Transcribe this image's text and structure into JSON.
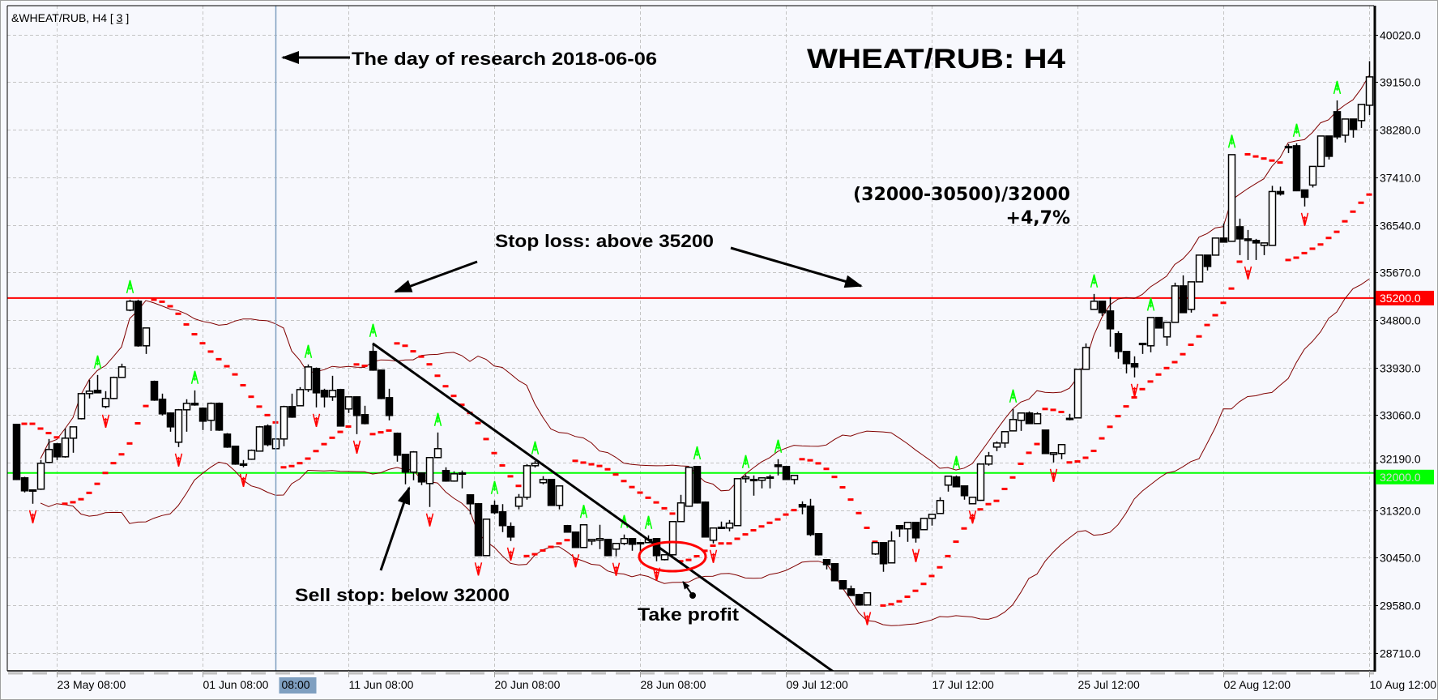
{
  "window": {
    "symbol_label": "&WHEAT/RUB, H4 [",
    "symbol_index": "3",
    "symbol_close": "]"
  },
  "chart_data": {
    "type": "candlestick",
    "title": "WHEAT/RUB: H4",
    "ylim": [
      28380,
      40550
    ],
    "grid": true,
    "y_ticks": [
      40020,
      39150,
      38280,
      37410,
      36540,
      35670,
      34800,
      33930,
      33060,
      32190,
      31320,
      30450,
      29580,
      28710
    ],
    "y_tick_labels": [
      "40020.0",
      "39150.0",
      "38280.0",
      "37410.0",
      "36540.0",
      "35670.0",
      "34800.0",
      "33930.0",
      "33060.0",
      "32190.0",
      "31320.0",
      "30450.0",
      "29580.0",
      "28710.0"
    ],
    "x_ticks": [
      {
        "label": "23 May 08:00",
        "bar": 5
      },
      {
        "label": "01 Jun 08:00",
        "bar": 23
      },
      {
        "label": "11 Jun 08:00",
        "bar": 41
      },
      {
        "label": "20 Jun 08:00",
        "bar": 59
      },
      {
        "label": "28 Jun 08:00",
        "bar": 77
      },
      {
        "label": "09 Jul 12:00",
        "bar": 95
      },
      {
        "label": "17 Jul 12:00",
        "bar": 113
      },
      {
        "label": "25 Jul 12:00",
        "bar": 131
      },
      {
        "label": "02 Aug 12:00",
        "bar": 149
      },
      {
        "label": "10 Aug 12:00",
        "bar": 167
      }
    ],
    "crosshair_time_label": "08:00",
    "candle_format": [
      "open",
      "high",
      "low",
      "close"
    ],
    "candles": [
      [
        32889,
        32900,
        31870,
        31881
      ],
      [
        31911,
        31930,
        31644,
        31674
      ],
      [
        31690,
        31700,
        31437,
        31690
      ],
      [
        31704,
        32237,
        31690,
        32178
      ],
      [
        32193,
        32622,
        32180,
        32430
      ],
      [
        32533,
        32550,
        32237,
        32296
      ],
      [
        32296,
        32815,
        32280,
        32637
      ],
      [
        32637,
        32844,
        32370,
        32844
      ],
      [
        32993,
        33460,
        32980,
        33452
      ],
      [
        33452,
        33704,
        33363,
        33497
      ],
      [
        33511,
        33793,
        33460,
        33467
      ],
      [
        33215,
        33497,
        33185,
        33363
      ],
      [
        33363,
        33763,
        33350,
        33749
      ],
      [
        33749,
        34000,
        33740,
        33941
      ],
      [
        34979,
        35171,
        34960,
        35142
      ],
      [
        35142,
        35171,
        34310,
        34327
      ],
      [
        34327,
        34653,
        34178,
        34653
      ],
      [
        33675,
        33690,
        33320,
        33334
      ],
      [
        33349,
        33452,
        33052,
        33082
      ],
      [
        33097,
        33110,
        32755,
        32844
      ],
      [
        32563,
        33170,
        32474,
        33156
      ],
      [
        33156,
        33349,
        32755,
        33274
      ],
      [
        33274,
        33511,
        33230,
        33245
      ],
      [
        33185,
        33200,
        32785,
        32948
      ],
      [
        32963,
        33290,
        32770,
        33274
      ],
      [
        33274,
        33290,
        32770,
        32785
      ],
      [
        32711,
        32730,
        32460,
        32474
      ],
      [
        32489,
        32500,
        32150,
        32163
      ],
      [
        32163,
        32237,
        32104,
        32163
      ],
      [
        32252,
        32430,
        32240,
        32415
      ],
      [
        32400,
        32860,
        32390,
        32844
      ],
      [
        32859,
        32889,
        32489,
        32519
      ],
      [
        32445,
        32640,
        32430,
        32622
      ],
      [
        32622,
        33230,
        32489,
        33215
      ],
      [
        33215,
        33452,
        33010,
        33022
      ],
      [
        33230,
        33571,
        33220,
        33526
      ],
      [
        33526,
        33986,
        33482,
        33941
      ],
      [
        33911,
        33930,
        33200,
        33467
      ],
      [
        33511,
        33541,
        33200,
        33393
      ],
      [
        33393,
        33778,
        33319,
        33511
      ],
      [
        33526,
        33540,
        32850,
        32859
      ],
      [
        33171,
        33400,
        33097,
        33393
      ],
      [
        33393,
        33400,
        32711,
        33052
      ],
      [
        33067,
        33230,
        32890,
        32904
      ],
      [
        34223,
        34371,
        33870,
        33882
      ],
      [
        33882,
        33890,
        33350,
        33363
      ],
      [
        33378,
        33541,
        32963,
        33052
      ],
      [
        32726,
        32740,
        32207,
        32326
      ],
      [
        32341,
        32350,
        31793,
        32015
      ],
      [
        32015,
        32400,
        31867,
        32385
      ],
      [
        32000,
        32010,
        31778,
        31837
      ],
      [
        31807,
        32290,
        31378,
        32282
      ],
      [
        32282,
        32741,
        32270,
        32445
      ],
      [
        32045,
        32104,
        31840,
        31852
      ],
      [
        31852,
        32030,
        31840,
        31985
      ],
      [
        32000,
        32045,
        31718,
        32000
      ],
      [
        31600,
        31610,
        31244,
        31437
      ],
      [
        31437,
        31450,
        30480,
        30488
      ],
      [
        30488,
        31160,
        30480,
        31155
      ],
      [
        31407,
        31496,
        31244,
        31274
      ],
      [
        31289,
        31430,
        30918,
        31037
      ],
      [
        31022,
        31096,
        30755,
        30829
      ],
      [
        31392,
        31615,
        31333,
        31556
      ],
      [
        31556,
        32163,
        31511,
        32133
      ],
      [
        32133,
        32222,
        32100,
        32178
      ],
      [
        31822,
        31941,
        31793,
        31881
      ],
      [
        31881,
        31890,
        31400,
        31407
      ],
      [
        31407,
        31770,
        31333,
        31763
      ],
      [
        31037,
        31050,
        30910,
        30918
      ],
      [
        30918,
        30930,
        30630,
        30637
      ],
      [
        30637,
        31060,
        30630,
        31052
      ],
      [
        30755,
        30790,
        30681,
        30785
      ],
      [
        30770,
        31052,
        30607,
        30800
      ],
      [
        30785,
        30790,
        30480,
        30488
      ],
      [
        30607,
        30720,
        30474,
        30711
      ],
      [
        30711,
        30874,
        30681,
        30800
      ],
      [
        30800,
        30810,
        30577,
        30696
      ],
      [
        30726,
        30730,
        30548,
        30711
      ],
      [
        30726,
        30859,
        30720,
        30785
      ],
      [
        30800,
        30810,
        30385,
        30488
      ],
      [
        30414,
        30510,
        30400,
        30503
      ],
      [
        30503,
        31120,
        30490,
        31111
      ],
      [
        31111,
        31600,
        31100,
        31452
      ],
      [
        31392,
        32110,
        31380,
        32104
      ],
      [
        32119,
        32130,
        31440,
        31452
      ],
      [
        31467,
        31480,
        30820,
        30829
      ],
      [
        30770,
        31000,
        30711,
        30993
      ],
      [
        31007,
        31111,
        30990,
        30993
      ],
      [
        30993,
        31140,
        30933,
        31081
      ],
      [
        31037,
        31900,
        31030,
        31896
      ],
      [
        31896,
        31970,
        31822,
        31926
      ],
      [
        31881,
        31955,
        31585,
        31867
      ],
      [
        31867,
        31920,
        31718,
        31911
      ],
      [
        31926,
        31970,
        31718,
        31911
      ],
      [
        32148,
        32252,
        31955,
        32118
      ],
      [
        32118,
        32130,
        31870,
        31881
      ],
      [
        31881,
        31960,
        31793,
        31955
      ],
      [
        31422,
        31481,
        31244,
        31378
      ],
      [
        31392,
        31526,
        30844,
        30874
      ],
      [
        30889,
        30900,
        30490,
        30503
      ],
      [
        30414,
        30420,
        30236,
        30325
      ],
      [
        30340,
        30350,
        30020,
        30029
      ],
      [
        30029,
        30040,
        29870,
        29880
      ],
      [
        29880,
        29940,
        29750,
        29760
      ],
      [
        29777,
        29790,
        29580,
        29585
      ],
      [
        29585,
        29810,
        29575,
        29807
      ],
      [
        30518,
        30730,
        30500,
        30726
      ],
      [
        30726,
        30735,
        30192,
        30340
      ],
      [
        30355,
        30933,
        30345,
        30755
      ],
      [
        31037,
        31045,
        30829,
        30978
      ],
      [
        30978,
        31100,
        30740,
        31096
      ],
      [
        31096,
        31105,
        30726,
        30814
      ],
      [
        30963,
        31175,
        30955,
        31170
      ],
      [
        31170,
        31250,
        31037,
        31244
      ],
      [
        31259,
        31556,
        31250,
        31496
      ],
      [
        31778,
        31945,
        31659,
        31941
      ],
      [
        31926,
        31955,
        31740,
        31748
      ],
      [
        31763,
        31770,
        31511,
        31585
      ],
      [
        31437,
        31560,
        31430,
        31556
      ],
      [
        31500,
        32170,
        31490,
        32163
      ],
      [
        32163,
        32385,
        32133,
        32311
      ],
      [
        32474,
        32578,
        32400,
        32548
      ],
      [
        32548,
        32760,
        32459,
        32756
      ],
      [
        32770,
        33171,
        32760,
        32978
      ],
      [
        32963,
        33100,
        32770,
        33097
      ],
      [
        33097,
        33126,
        32895,
        32904
      ],
      [
        32904,
        33112,
        32895,
        33082
      ],
      [
        32785,
        32790,
        32350,
        32356
      ],
      [
        32341,
        32375,
        32193,
        32370
      ],
      [
        32356,
        32525,
        32252,
        32519
      ],
      [
        33000,
        33082,
        32963,
        33000
      ],
      [
        33008,
        33900,
        33000,
        33897
      ],
      [
        33897,
        34371,
        33890,
        34297
      ],
      [
        34993,
        35275,
        34985,
        35142
      ],
      [
        35142,
        35150,
        34875,
        34934
      ],
      [
        34964,
        35216,
        34312,
        34638
      ],
      [
        34549,
        34594,
        34090,
        34223
      ],
      [
        34223,
        34230,
        33823,
        34001
      ],
      [
        34001,
        34134,
        33749,
        33941
      ],
      [
        34371,
        34380,
        34178,
        34356
      ],
      [
        34327,
        34850,
        34208,
        34845
      ],
      [
        34845,
        34850,
        34645,
        34653
      ],
      [
        34490,
        34760,
        34327,
        34756
      ],
      [
        34756,
        35482,
        34750,
        35423
      ],
      [
        35423,
        35616,
        34925,
        34934
      ],
      [
        34993,
        35500,
        34934,
        35497
      ],
      [
        35497,
        35990,
        35490,
        35986
      ],
      [
        35986,
        35990,
        35705,
        35779
      ],
      [
        35986,
        36300,
        35980,
        36298
      ],
      [
        36298,
        36565,
        36215,
        36224
      ],
      [
        36239,
        37830,
        36230,
        37824
      ],
      [
        36505,
        36654,
        35986,
        36283
      ],
      [
        36283,
        36446,
        35897,
        36254
      ],
      [
        36254,
        36283,
        35897,
        36209
      ],
      [
        36165,
        36215,
        35986,
        36209
      ],
      [
        36165,
        37254,
        36160,
        37149
      ],
      [
        37149,
        37239,
        37075,
        37105
      ],
      [
        37972,
        38017,
        37853,
        37972
      ],
      [
        37987,
        38032,
        37155,
        37164
      ],
      [
        37179,
        37185,
        36876,
        37045
      ],
      [
        37268,
        37615,
        37223,
        37609
      ],
      [
        37609,
        38170,
        37600,
        38165
      ],
      [
        38165,
        38170,
        37735,
        37794
      ],
      [
        38610,
        38817,
        38106,
        38150
      ],
      [
        38180,
        38480,
        38046,
        38476
      ],
      [
        38476,
        38480,
        38135,
        38284
      ],
      [
        38447,
        38750,
        38313,
        38743
      ],
      [
        38728,
        39535,
        38550,
        39247
      ]
    ],
    "indicators": {
      "bollinger_color": "#800000",
      "parabolic_sar_color": "#ff0000",
      "fractal_up_color": "#00ff00",
      "fractal_down_color": "#ff0000"
    },
    "levels": [
      {
        "price": 35200,
        "label": "35200.0",
        "color": "#ff0000",
        "label_text_color": "#ffffff"
      },
      {
        "price": 32000,
        "label": "32000.0",
        "color": "#00ff00",
        "label_text_color": "#d8d8d8"
      }
    ],
    "research_marker": {
      "bar": 32,
      "color": "#7f9fc0"
    },
    "trendline": {
      "from": {
        "bar": 44,
        "price": 34371
      },
      "to": {
        "bar": 101,
        "price": 28350
      },
      "color": "#000000"
    },
    "take_profit_zone": {
      "bar": 81,
      "price": 30500,
      "color": "#ff0000"
    }
  },
  "annotations": {
    "research_day": "The day of research 2018-06-06",
    "title": "WHEAT/RUB: H4",
    "formula": "(32000-30500)/32000",
    "result": "+4,7%",
    "stop_loss": "Stop loss: above 35200",
    "sell_stop": "Sell stop: below 32000",
    "take_profit": "Take profit"
  }
}
